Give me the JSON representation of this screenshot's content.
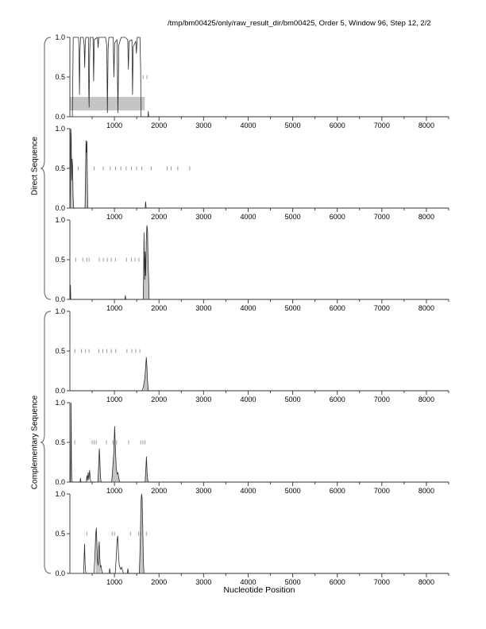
{
  "title": "/tmp/bm00425/only/raw_result_dir/bm00425, Order 5, Window 96, Step 12, 2/2",
  "x_axis": {
    "label": "Nucleotide Position",
    "min": 0,
    "max": 8500,
    "major_ticks": [
      1000,
      2000,
      3000,
      4000,
      5000,
      6000,
      7000,
      8000
    ],
    "minor_tick_step": 500
  },
  "y_axis": {
    "ticks": [
      {
        "value": 1.0,
        "label": "1.0"
      },
      {
        "value": 0.5,
        "label": "0.5"
      },
      {
        "value": 0.0,
        "label": "0.0"
      }
    ]
  },
  "groups": [
    {
      "label": "Direct Sequence"
    },
    {
      "label": "Complementary Sequence"
    }
  ],
  "colors": {
    "curve": "#2b2b2b",
    "fill": "#c5c5c5",
    "band": "#c5c5c5",
    "marks": "#9b9b9b",
    "axis": "#444444",
    "brace": "#777777"
  },
  "chart_data": [
    {
      "type": "line",
      "name": "direct-frame-1",
      "group": "Direct Sequence",
      "ylim": [
        0,
        1
      ],
      "points": [
        [
          55,
          0
        ],
        [
          65,
          0.45
        ],
        [
          75,
          1
        ],
        [
          150,
          1
        ],
        [
          195,
          1
        ],
        [
          205,
          0.82
        ],
        [
          215,
          0.28
        ],
        [
          228,
          0.85
        ],
        [
          240,
          1
        ],
        [
          300,
          1
        ],
        [
          320,
          0.9
        ],
        [
          333,
          0.62
        ],
        [
          345,
          0.95
        ],
        [
          360,
          1
        ],
        [
          415,
          1
        ],
        [
          424,
          0.3
        ],
        [
          432,
          0.12
        ],
        [
          442,
          0.75
        ],
        [
          455,
          1
        ],
        [
          520,
          1
        ],
        [
          533,
          0.45
        ],
        [
          548,
          0.97
        ],
        [
          620,
          1
        ],
        [
          633,
          0.87
        ],
        [
          648,
          1
        ],
        [
          800,
          1
        ],
        [
          828,
          0.9
        ],
        [
          842,
          0.05
        ],
        [
          858,
          0.85
        ],
        [
          875,
          1
        ],
        [
          972,
          1
        ],
        [
          988,
          0.5
        ],
        [
          1005,
          0.93
        ],
        [
          1058,
          0.97
        ],
        [
          1078,
          0.05
        ],
        [
          1098,
          0.9
        ],
        [
          1150,
          1
        ],
        [
          1240,
          1
        ],
        [
          1298,
          0.97
        ],
        [
          1313,
          0.6
        ],
        [
          1328,
          0.95
        ],
        [
          1392,
          0.97
        ],
        [
          1406,
          0.28
        ],
        [
          1420,
          0.88
        ],
        [
          1478,
          0.95
        ],
        [
          1492,
          0.8
        ],
        [
          1512,
          1
        ],
        [
          1572,
          1
        ],
        [
          1588,
          0.6
        ],
        [
          1596,
          0
        ],
        [
          1752,
          0
        ],
        [
          1760,
          0.07
        ],
        [
          1768,
          0
        ],
        [
          8500,
          0
        ]
      ],
      "marks_y": 0.5,
      "marks_x": [
        1645,
        1730
      ],
      "fill_regions": [],
      "band": {
        "x1": 0,
        "x2": 1680,
        "y1": 0.08,
        "y2": 0.25
      }
    },
    {
      "type": "line",
      "name": "direct-frame-2",
      "group": "Direct Sequence",
      "ylim": [
        0,
        1
      ],
      "points": [
        [
          5,
          0
        ],
        [
          12,
          0.25
        ],
        [
          20,
          1
        ],
        [
          30,
          0.9
        ],
        [
          40,
          0.35
        ],
        [
          50,
          0.62
        ],
        [
          62,
          0.5
        ],
        [
          72,
          0.15
        ],
        [
          85,
          0
        ],
        [
          340,
          0
        ],
        [
          352,
          0.45
        ],
        [
          362,
          0.85
        ],
        [
          372,
          0.7
        ],
        [
          382,
          0.84
        ],
        [
          392,
          0.35
        ],
        [
          402,
          0
        ],
        [
          1688,
          0
        ],
        [
          1700,
          0.08
        ],
        [
          1712,
          0
        ],
        [
          8500,
          0
        ]
      ],
      "marks_y": 0.5,
      "marks_x": [
        186,
        544,
        750,
        905,
        1023,
        1143,
        1262,
        1381,
        1497,
        1616,
        1824,
        2182,
        2271,
        2421,
        2689
      ],
      "fill_regions": [
        [
          5,
          95
        ],
        [
          340,
          410
        ]
      ]
    },
    {
      "type": "line",
      "name": "direct-frame-3",
      "group": "Direct Sequence",
      "ylim": [
        0,
        1
      ],
      "points": [
        [
          5,
          0
        ],
        [
          12,
          0.18
        ],
        [
          20,
          0
        ],
        [
          1235,
          0
        ],
        [
          1245,
          0.05
        ],
        [
          1255,
          0
        ],
        [
          1645,
          0
        ],
        [
          1655,
          0.3
        ],
        [
          1663,
          0.84
        ],
        [
          1672,
          0.45
        ],
        [
          1680,
          0.25
        ],
        [
          1690,
          0.6
        ],
        [
          1702,
          0.3
        ],
        [
          1714,
          0.75
        ],
        [
          1728,
          0.93
        ],
        [
          1742,
          0.88
        ],
        [
          1756,
          0.45
        ],
        [
          1768,
          0.25
        ],
        [
          1778,
          0
        ],
        [
          8500,
          0
        ]
      ],
      "marks_y": 0.5,
      "marks_x": [
        130,
        290,
        380,
        430,
        660,
        750,
        840,
        930,
        1020,
        1270,
        1380,
        1460,
        1550
      ],
      "fill_regions": [
        [
          3,
          25
        ],
        [
          1645,
          1780
        ]
      ]
    },
    {
      "type": "line",
      "name": "complementary-frame-1",
      "group": "Complementary Sequence",
      "ylim": [
        0,
        1
      ],
      "points": [
        [
          0,
          0
        ],
        [
          1620,
          0
        ],
        [
          1650,
          0.05
        ],
        [
          1680,
          0.15
        ],
        [
          1700,
          0.3
        ],
        [
          1715,
          0.42
        ],
        [
          1728,
          0.32
        ],
        [
          1740,
          0.15
        ],
        [
          1752,
          0.05
        ],
        [
          1762,
          0
        ],
        [
          8500,
          0
        ]
      ],
      "marks_y": 0.5,
      "marks_x": [
        110,
        260,
        350,
        430,
        650,
        740,
        830,
        930,
        1030,
        1280,
        1390,
        1480,
        1570
      ],
      "fill_regions": [
        [
          1650,
          1762
        ]
      ]
    },
    {
      "type": "line",
      "name": "complementary-frame-2",
      "group": "Complementary Sequence",
      "ylim": [
        0,
        1
      ],
      "points": [
        [
          15,
          0
        ],
        [
          22,
          0.3
        ],
        [
          28,
          1
        ],
        [
          35,
          0.25
        ],
        [
          42,
          0.05
        ],
        [
          52,
          0
        ],
        [
          228,
          0
        ],
        [
          238,
          0.05
        ],
        [
          248,
          0
        ],
        [
          368,
          0
        ],
        [
          383,
          0.08
        ],
        [
          395,
          0.02
        ],
        [
          410,
          0.12
        ],
        [
          425,
          0.03
        ],
        [
          443,
          0.15
        ],
        [
          458,
          0.04
        ],
        [
          472,
          0
        ],
        [
          628,
          0
        ],
        [
          645,
          0.2
        ],
        [
          660,
          0.42
        ],
        [
          672,
          0.3
        ],
        [
          685,
          0.08
        ],
        [
          700,
          0
        ],
        [
          938,
          0
        ],
        [
          958,
          0.15
        ],
        [
          983,
          0.35
        ],
        [
          1005,
          0.7
        ],
        [
          1020,
          0.45
        ],
        [
          1040,
          0.18
        ],
        [
          1060,
          0.1
        ],
        [
          1078,
          0.12
        ],
        [
          1098,
          0.05
        ],
        [
          1118,
          0
        ],
        [
          1688,
          0
        ],
        [
          1703,
          0.15
        ],
        [
          1718,
          0.32
        ],
        [
          1733,
          0.12
        ],
        [
          1746,
          0.03
        ],
        [
          1758,
          0
        ],
        [
          8500,
          0
        ]
      ],
      "marks_y": 0.5,
      "marks_x": [
        110,
        500,
        545,
        590,
        820,
        965,
        1050,
        1320,
        1590,
        1640,
        1685
      ],
      "fill_regions": [
        [
          628,
          700
        ],
        [
          938,
          1118
        ],
        [
          1688,
          1758
        ]
      ]
    },
    {
      "type": "line",
      "name": "complementary-frame-3",
      "group": "Complementary Sequence",
      "ylim": [
        0,
        1
      ],
      "points": [
        [
          308,
          0
        ],
        [
          320,
          0.2
        ],
        [
          330,
          0.37
        ],
        [
          340,
          0.15
        ],
        [
          350,
          0.04
        ],
        [
          362,
          0
        ],
        [
          540,
          0
        ],
        [
          560,
          0.2
        ],
        [
          580,
          0.5
        ],
        [
          594,
          0.57
        ],
        [
          608,
          0.35
        ],
        [
          620,
          0.15
        ],
        [
          634,
          0.1
        ],
        [
          647,
          0.32
        ],
        [
          658,
          0.4
        ],
        [
          670,
          0.2
        ],
        [
          684,
          0.08
        ],
        [
          698,
          0.1
        ],
        [
          714,
          0.04
        ],
        [
          728,
          0
        ],
        [
          878,
          0
        ],
        [
          893,
          0.06
        ],
        [
          908,
          0
        ],
        [
          1018,
          0
        ],
        [
          1040,
          0.2
        ],
        [
          1058,
          0.42
        ],
        [
          1074,
          0.47
        ],
        [
          1090,
          0.25
        ],
        [
          1104,
          0.12
        ],
        [
          1120,
          0.08
        ],
        [
          1140,
          0.05
        ],
        [
          1163,
          0.08
        ],
        [
          1184,
          0.03
        ],
        [
          1204,
          0
        ],
        [
          1288,
          0
        ],
        [
          1302,
          0.06
        ],
        [
          1316,
          0
        ],
        [
          1558,
          0
        ],
        [
          1578,
          0.35
        ],
        [
          1596,
          0.9
        ],
        [
          1608,
          1
        ],
        [
          1622,
          0.95
        ],
        [
          1638,
          0.5
        ],
        [
          1650,
          0.15
        ],
        [
          1662,
          0
        ],
        [
          8500,
          0
        ]
      ],
      "marks_y": 0.5,
      "marks_x": [
        380,
        950,
        1000,
        1360,
        1540,
        1590,
        1715
      ],
      "fill_regions": [
        [
          575,
          700
        ],
        [
          1558,
          1662
        ]
      ]
    }
  ]
}
